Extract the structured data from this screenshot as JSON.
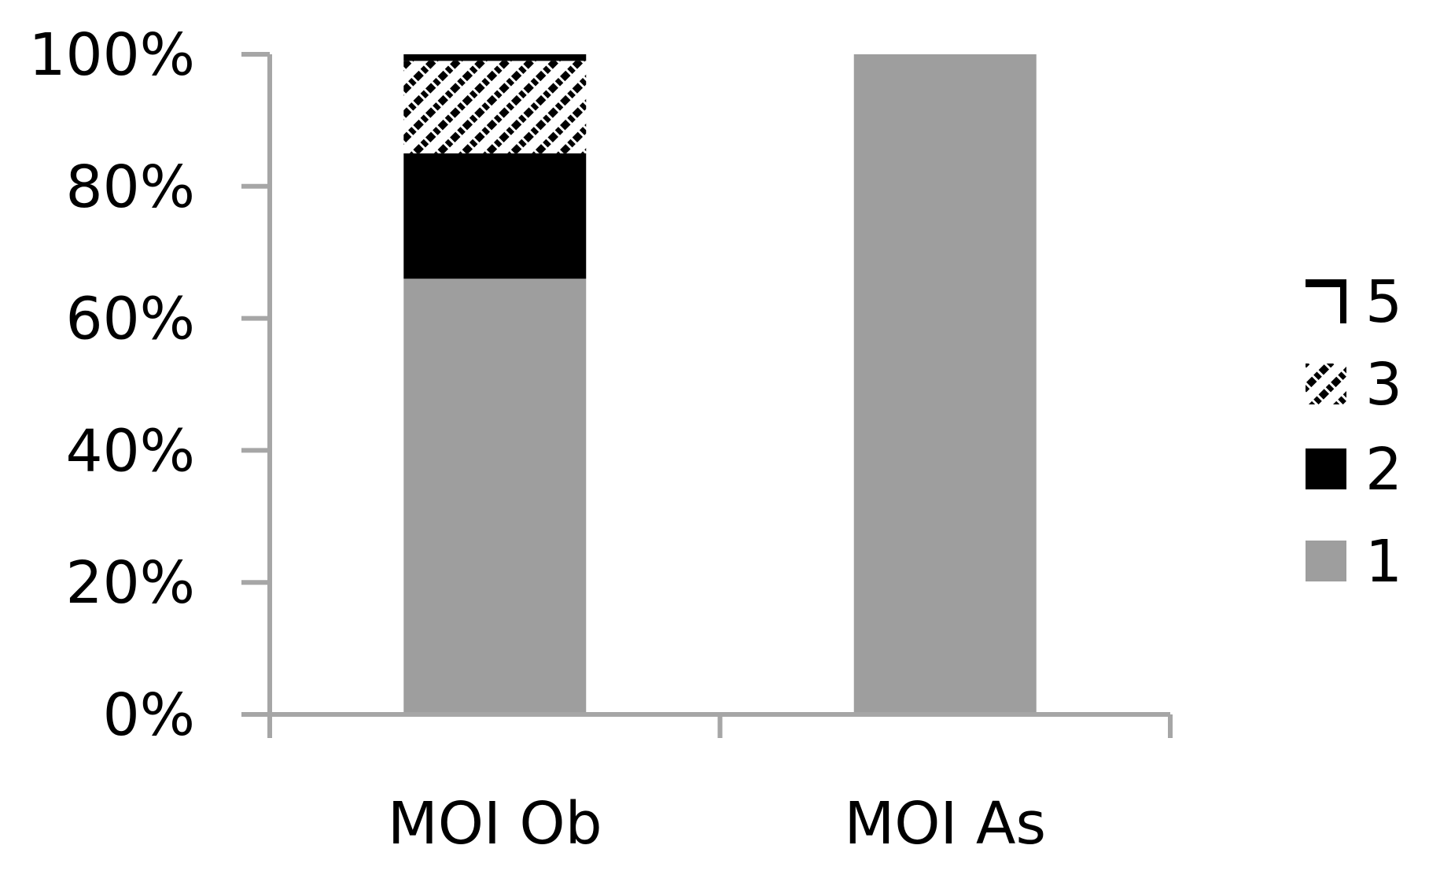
{
  "chart_data": {
    "type": "bar",
    "stacked": true,
    "categories": [
      "MOI Ob",
      "MOI As"
    ],
    "series": [
      {
        "name": "1",
        "values": [
          66,
          100
        ],
        "color": "#9e9e9e",
        "pattern": "solid"
      },
      {
        "name": "2",
        "values": [
          19,
          0
        ],
        "color": "#000000",
        "pattern": "solid"
      },
      {
        "name": "3",
        "values": [
          14,
          0
        ],
        "color": "#000000",
        "pattern": "diagonal-hatch"
      },
      {
        "name": "5",
        "values": [
          1,
          0
        ],
        "color": "#000000",
        "pattern": "line"
      }
    ],
    "ylim": [
      0,
      100
    ],
    "yticks": [
      "0%",
      "20%",
      "40%",
      "60%",
      "80%",
      "100%"
    ],
    "ytick_values": [
      0,
      20,
      40,
      60,
      80,
      100
    ],
    "title": "",
    "xlabel": "",
    "ylabel": "",
    "grid": false,
    "legend_position": "right",
    "axis_color": "#a6a6a6"
  }
}
